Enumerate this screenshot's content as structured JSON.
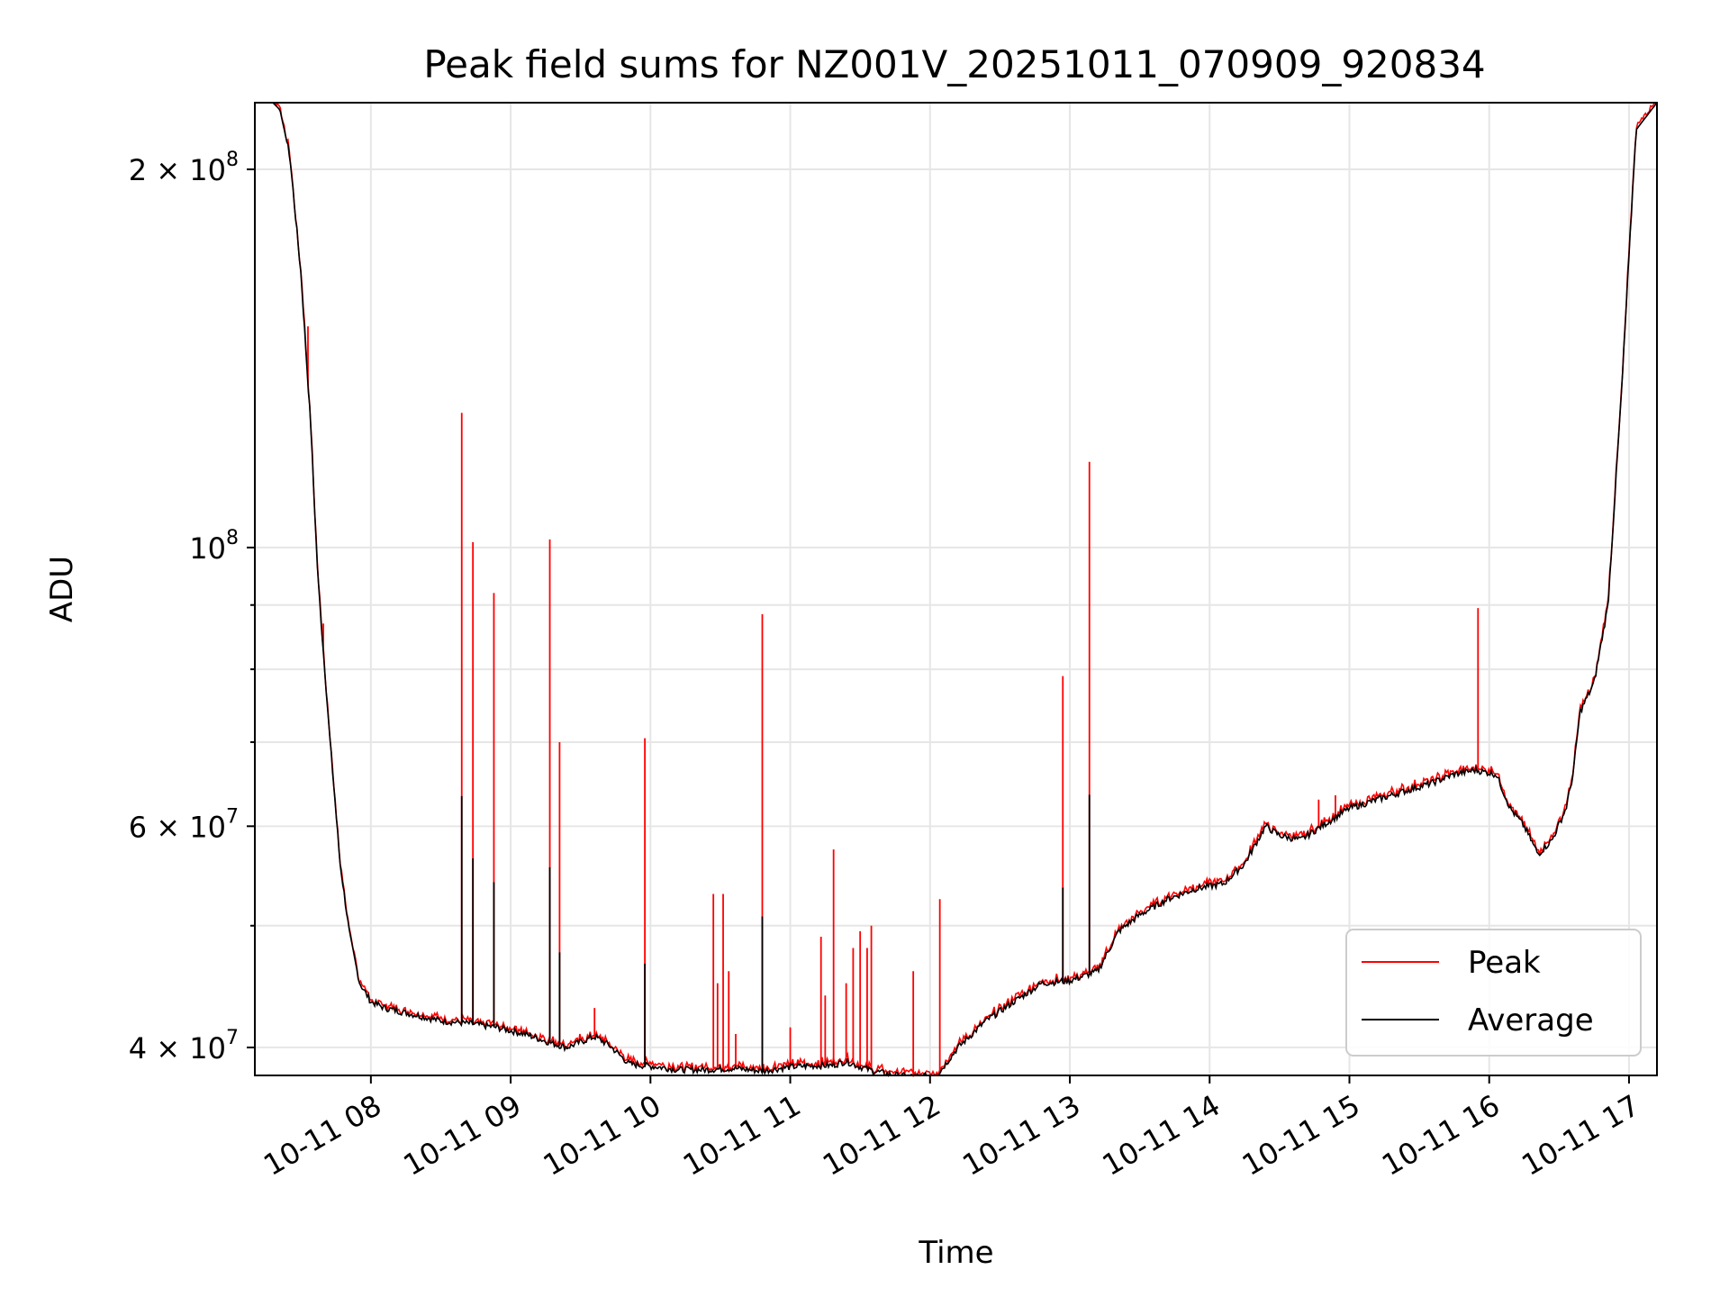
{
  "chart_data": {
    "type": "line",
    "title": "Peak field sums for NZ001V_20251011_070909_920834",
    "xlabel": "Time",
    "ylabel": "ADU",
    "yscale": "log",
    "ylim": [
      38000000,
      226000000
    ],
    "xlim_hours": [
      7.17,
      17.2
    ],
    "grid": true,
    "legend_position": "lower-right",
    "x_ticks": [
      {
        "hour": 8,
        "label": "10-11 08"
      },
      {
        "hour": 9,
        "label": "10-11 09"
      },
      {
        "hour": 10,
        "label": "10-11 10"
      },
      {
        "hour": 11,
        "label": "10-11 11"
      },
      {
        "hour": 12,
        "label": "10-11 12"
      },
      {
        "hour": 13,
        "label": "10-11 13"
      },
      {
        "hour": 14,
        "label": "10-11 14"
      },
      {
        "hour": 15,
        "label": "10-11 15"
      },
      {
        "hour": 16,
        "label": "10-11 16"
      },
      {
        "hour": 17,
        "label": "10-11 17"
      }
    ],
    "y_major_ticks": [
      {
        "value": 40000000,
        "mantissa": "4",
        "exponent": "7"
      },
      {
        "value": 60000000,
        "mantissa": "6",
        "exponent": "7"
      },
      {
        "value": 100000000,
        "mantissa": "",
        "exponent": "8"
      },
      {
        "value": 200000000,
        "mantissa": "2",
        "exponent": "8"
      }
    ],
    "y_minor_ticks": [
      50000000,
      70000000,
      80000000,
      90000000
    ],
    "series": [
      {
        "name": "Average",
        "color": "#000000",
        "x_hours": [
          7.17,
          7.3,
          7.35,
          7.42,
          7.5,
          7.57,
          7.62,
          7.7,
          7.78,
          7.85,
          7.92,
          8.0,
          8.1,
          8.3,
          8.5,
          8.7,
          8.9,
          9.1,
          9.3,
          9.4,
          9.6,
          9.7,
          9.85,
          9.95,
          10.05,
          10.2,
          10.4,
          10.6,
          10.8,
          11.0,
          11.2,
          11.3,
          11.4,
          11.5,
          11.6,
          11.75,
          11.9,
          12.05,
          12.2,
          12.4,
          12.6,
          12.8,
          13.0,
          13.2,
          13.35,
          13.5,
          13.7,
          13.9,
          14.1,
          14.25,
          14.4,
          14.5,
          14.65,
          14.8,
          15.0,
          15.2,
          15.4,
          15.6,
          15.75,
          15.9,
          16.05,
          16.15,
          16.25,
          16.35,
          16.45,
          16.55,
          16.6,
          16.65,
          16.75,
          16.85,
          16.95,
          17.05,
          17.2
        ],
        "y": [
          226000000,
          226000000,
          223000000,
          205000000,
          165000000,
          125000000,
          95000000,
          72000000,
          56000000,
          49000000,
          45000000,
          43500000,
          43000000,
          42500000,
          42000000,
          41800000,
          41500000,
          41000000,
          40300000,
          40000000,
          40800000,
          40200000,
          38800000,
          38700000,
          38600000,
          38400000,
          38400000,
          38500000,
          38300000,
          38600000,
          38700000,
          38700000,
          39000000,
          38600000,
          38300000,
          38000000,
          37900000,
          38000000,
          40000000,
          42000000,
          43500000,
          45000000,
          45200000,
          46000000,
          49500000,
          51000000,
          52500000,
          53500000,
          54000000,
          56000000,
          60000000,
          59000000,
          58500000,
          60000000,
          62000000,
          63000000,
          64000000,
          65000000,
          66000000,
          66500000,
          66000000,
          62000000,
          60000000,
          57000000,
          58500000,
          62000000,
          66000000,
          74000000,
          78000000,
          90000000,
          135000000,
          215000000,
          226000000
        ]
      },
      {
        "name": "Peak",
        "color": "#ff0000",
        "spikes": [
          {
            "hour": 7.55,
            "value": 150000000
          },
          {
            "hour": 7.66,
            "value": 87000000
          },
          {
            "hour": 8.65,
            "value": 128000000
          },
          {
            "hour": 8.73,
            "value": 101000000
          },
          {
            "hour": 8.88,
            "value": 92000000
          },
          {
            "hour": 9.28,
            "value": 101500000
          },
          {
            "hour": 9.35,
            "value": 70000000
          },
          {
            "hour": 9.6,
            "value": 43000000
          },
          {
            "hour": 9.96,
            "value": 70500000
          },
          {
            "hour": 10.45,
            "value": 53000000
          },
          {
            "hour": 10.48,
            "value": 45000000
          },
          {
            "hour": 10.52,
            "value": 53000000
          },
          {
            "hour": 10.56,
            "value": 46000000
          },
          {
            "hour": 10.61,
            "value": 41000000
          },
          {
            "hour": 10.8,
            "value": 88500000
          },
          {
            "hour": 11.0,
            "value": 41500000
          },
          {
            "hour": 11.22,
            "value": 49000000
          },
          {
            "hour": 11.25,
            "value": 44000000
          },
          {
            "hour": 11.31,
            "value": 57500000
          },
          {
            "hour": 11.4,
            "value": 45000000
          },
          {
            "hour": 11.45,
            "value": 48000000
          },
          {
            "hour": 11.5,
            "value": 49500000
          },
          {
            "hour": 11.55,
            "value": 48000000
          },
          {
            "hour": 11.58,
            "value": 50000000
          },
          {
            "hour": 11.88,
            "value": 46000000
          },
          {
            "hour": 12.07,
            "value": 52500000
          },
          {
            "hour": 12.95,
            "value": 79000000
          },
          {
            "hour": 13.14,
            "value": 117000000
          },
          {
            "hour": 14.78,
            "value": 63000000
          },
          {
            "hour": 14.9,
            "value": 63500000
          },
          {
            "hour": 15.92,
            "value": 89500000
          }
        ]
      }
    ]
  }
}
